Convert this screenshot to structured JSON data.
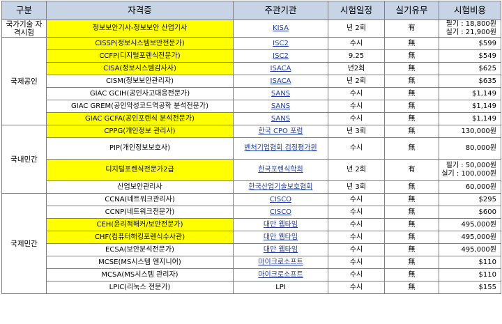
{
  "headers": [
    "구분",
    "자격증",
    "주관기관",
    "시험일정",
    "실기유무",
    "시험비용"
  ],
  "colors": {
    "header_bg": "#c6d4e5",
    "highlight": "#ffff00",
    "link": "#1f3da6"
  },
  "groups": [
    {
      "category": "국가기술 자격시험",
      "rows": [
        {
          "name": "정보보안기사-정보보안 산업기사",
          "highlight": true,
          "org": "KISA",
          "org_link": true,
          "schedule": "년 2회",
          "practical": "有",
          "cost": [
            "필기 : 18,800원",
            "실기 : 21,900원"
          ]
        }
      ]
    },
    {
      "category": "국제공인",
      "rows": [
        {
          "name": "CISSP(정보시스템보안전문가)",
          "highlight": true,
          "org": "ISC2",
          "org_link": true,
          "schedule": "수시",
          "practical": "無",
          "cost": [
            "$599"
          ]
        },
        {
          "name": "CCFP(디지털포렌식전문가)",
          "highlight": true,
          "org": "ISC2",
          "org_link": true,
          "schedule": "9.25",
          "practical": "無",
          "cost": [
            "$549"
          ]
        },
        {
          "name": "CISA(정보시스템감사사)",
          "highlight": true,
          "org": "ISACA",
          "org_link": true,
          "schedule": "년2회",
          "practical": "無",
          "cost": [
            "$625"
          ]
        },
        {
          "name": "CISM(정보보안관리자)",
          "highlight": false,
          "org": "ISACA",
          "org_link": true,
          "schedule": "년 2회",
          "practical": "無",
          "cost": [
            "$635"
          ]
        },
        {
          "name": "GIAC GCIH(공인사고대응전문가)",
          "highlight": false,
          "org": "SANS",
          "org_link": true,
          "schedule": "수시",
          "practical": "無",
          "cost": [
            "$1,149"
          ]
        },
        {
          "name": "GIAC GREM(공인악성코드역공학 분석전문가)",
          "highlight": false,
          "org": "SANS",
          "org_link": true,
          "schedule": "수시",
          "practical": "無",
          "cost": [
            "$1,149"
          ]
        },
        {
          "name": "GIAC GCFA(공인포렌식 분석전문가)",
          "highlight": true,
          "org": "SANS",
          "org_link": true,
          "schedule": "수시",
          "practical": "無",
          "cost": [
            "$1,149"
          ]
        }
      ]
    },
    {
      "category": "국내민간",
      "rows": [
        {
          "name": "CPPG(개인정보 관리사)",
          "highlight": true,
          "org": "한국 CPO 포럼",
          "org_link": true,
          "schedule": "년 3회",
          "practical": "無",
          "cost": [
            "130,000원"
          ]
        },
        {
          "name": "PIP(개인정보보호사)",
          "highlight": false,
          "org": "벤처기업협회 검정평가원",
          "org_link": true,
          "schedule": "수시",
          "practical": "無",
          "cost": [
            "80,000원"
          ]
        },
        {
          "name": "디지털포렌식전문가2급",
          "highlight": true,
          "org": "한국포렌식학회",
          "org_link": true,
          "schedule": "년 2회",
          "practical": "有",
          "cost": [
            "필기 : 50,000원",
            "실기 : 100,000원"
          ]
        },
        {
          "name": "산업보안관리사",
          "highlight": false,
          "org": "한국산업기술보호협회",
          "org_link": true,
          "schedule": "년 3회",
          "practical": "無",
          "cost": [
            "60,000원"
          ]
        }
      ]
    },
    {
      "category": "국제민간",
      "rows": [
        {
          "name": "CCNA(네트워크관리사)",
          "highlight": false,
          "org": "CISCO",
          "org_link": true,
          "schedule": "수시",
          "practical": "無",
          "cost": [
            "$295"
          ]
        },
        {
          "name": "CCNP(네트워크전문가)",
          "highlight": false,
          "org": "CISCO",
          "org_link": true,
          "schedule": "수시",
          "practical": "無",
          "cost": [
            "$600"
          ]
        },
        {
          "name": "CEH(윤리적해커/보안전문가)",
          "highlight": true,
          "org": "대만 웹타임",
          "org_link": true,
          "schedule": "수시",
          "practical": "無",
          "cost": [
            "495,000원"
          ]
        },
        {
          "name": "CHF(컴퓨터해킹포렌식수사관)",
          "highlight": true,
          "org": "대만 웹타임",
          "org_link": true,
          "schedule": "수시",
          "practical": "無",
          "cost": [
            "495,000원"
          ]
        },
        {
          "name": "ECSA(보안분석전문가)",
          "highlight": false,
          "org": "대만 웹타임",
          "org_link": true,
          "schedule": "수시",
          "practical": "無",
          "cost": [
            "495,000원"
          ]
        },
        {
          "name": "MCSE(MS시스템 엔지니어)",
          "highlight": false,
          "org": "마이크로소프트",
          "org_link": true,
          "schedule": "수시",
          "practical": "無",
          "cost": [
            "$110"
          ]
        },
        {
          "name": "MCSA(MS시스템 관리자)",
          "highlight": false,
          "org": "마이크로소프트",
          "org_link": true,
          "schedule": "수시",
          "practical": "無",
          "cost": [
            "$110"
          ]
        },
        {
          "name": "LPIC(리눅스 전문가)",
          "highlight": false,
          "org": "LPI",
          "org_link": false,
          "schedule": "수시",
          "practical": "無",
          "cost": [
            "$155"
          ]
        }
      ]
    }
  ]
}
